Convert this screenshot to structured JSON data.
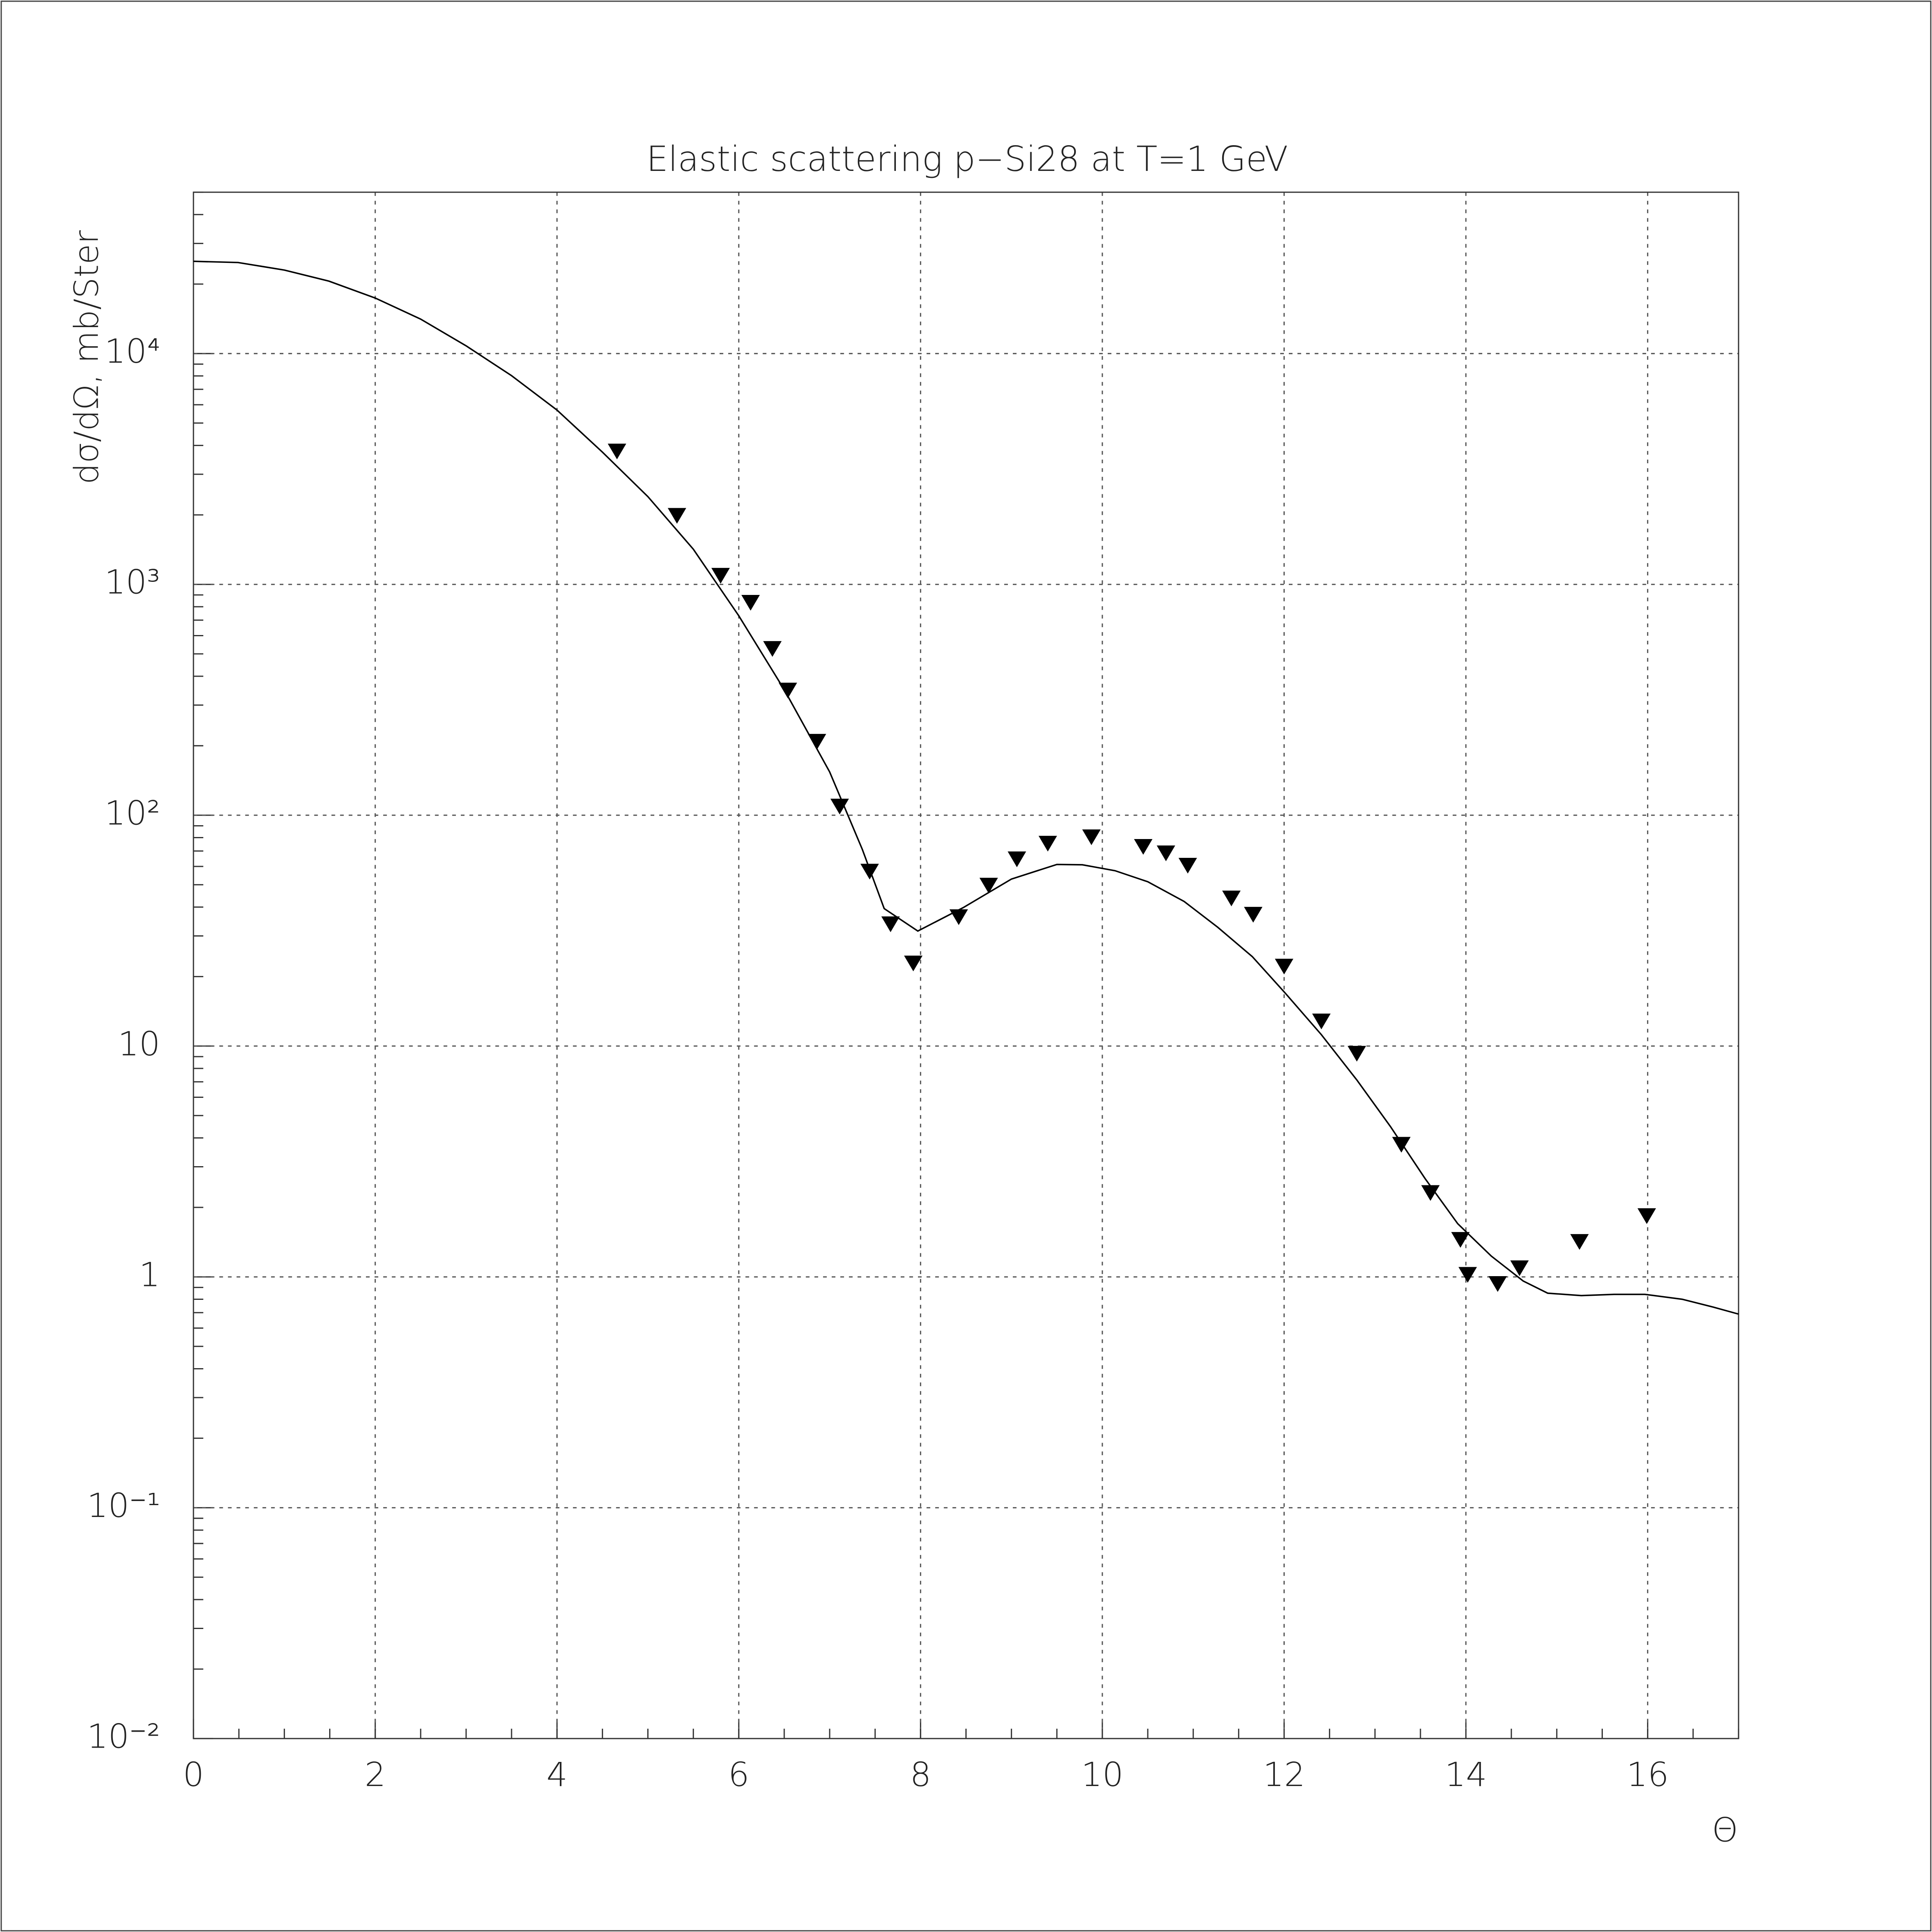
{
  "chart_data": {
    "type": "line",
    "title": "Elastic scattering p−Si28 at T=1 GeV",
    "x_label": "Θ",
    "y_label": "dσ/dΩ, mb/Ster",
    "xlim": [
      0,
      17
    ],
    "xticks": [
      0,
      2,
      4,
      6,
      8,
      10,
      12,
      14,
      16
    ],
    "ylim": [
      0.01,
      50000
    ],
    "yticks": [
      {
        "value": 0.01,
        "label": "10⁻²"
      },
      {
        "value": 0.1,
        "label": "10⁻¹"
      },
      1,
      10,
      {
        "value": 100,
        "label": "10²"
      },
      {
        "value": 1000,
        "label": "10³"
      },
      {
        "value": 10000,
        "label": "10⁴"
      }
    ],
    "log_y": true,
    "grid": true,
    "series": [
      {
        "mode": "line",
        "color": "#000000",
        "x": [
          0,
          0.49,
          1.0,
          1.49,
          2.0,
          2.5,
          3.0,
          3.5,
          4.0,
          4.5,
          5.0,
          5.5,
          6.0,
          6.5,
          7.0,
          7.36,
          7.6,
          7.97,
          8.47,
          9.0,
          9.5,
          9.78,
          10.14,
          10.5,
          10.9,
          11.27,
          11.65,
          12.01,
          12.41,
          12.8,
          13.17,
          13.55,
          13.91,
          14.28,
          14.63,
          14.9,
          15.27,
          15.63,
          15.97,
          16.38,
          16.72,
          17.0
        ],
        "values": [
          25100,
          24800,
          23000,
          20600,
          17400,
          14100,
          10800,
          8020,
          5690,
          3740,
          2400,
          1420,
          731,
          350,
          154,
          71,
          39.4,
          31.5,
          39.8,
          52.9,
          61.2,
          61,
          57.5,
          51.5,
          42.3,
          32.7,
          24.4,
          17,
          11.2,
          7.13,
          4.48,
          2.67,
          1.7,
          1.23,
          0.96,
          0.85,
          0.83,
          0.84,
          0.84,
          0.8,
          0.74,
          0.69
        ]
      },
      {
        "mode": "markers",
        "marker": "triangle-down",
        "color": "#000000",
        "x": [
          4.66,
          5.32,
          5.8,
          6.13,
          6.37,
          6.54,
          6.86,
          7.11,
          7.44,
          7.67,
          7.92,
          8.42,
          8.75,
          9.06,
          9.4,
          9.88,
          10.45,
          10.7,
          10.94,
          11.42,
          11.66,
          12.0,
          12.41,
          12.8,
          13.29,
          13.61,
          13.94,
          14.02,
          14.35,
          14.59,
          15.25,
          15.99
        ],
        "values": [
          3800,
          2000,
          1100,
          840,
          530,
          350,
          210,
          110,
          57.5,
          34,
          23,
          36.5,
          50,
          65,
          76,
          81,
          73.6,
          69,
          61,
          44,
          37.4,
          22.3,
          12.9,
          9.35,
          3.77,
          2.33,
          1.46,
          1.03,
          0.94,
          1.1,
          1.43,
          1.85
        ]
      }
    ]
  }
}
